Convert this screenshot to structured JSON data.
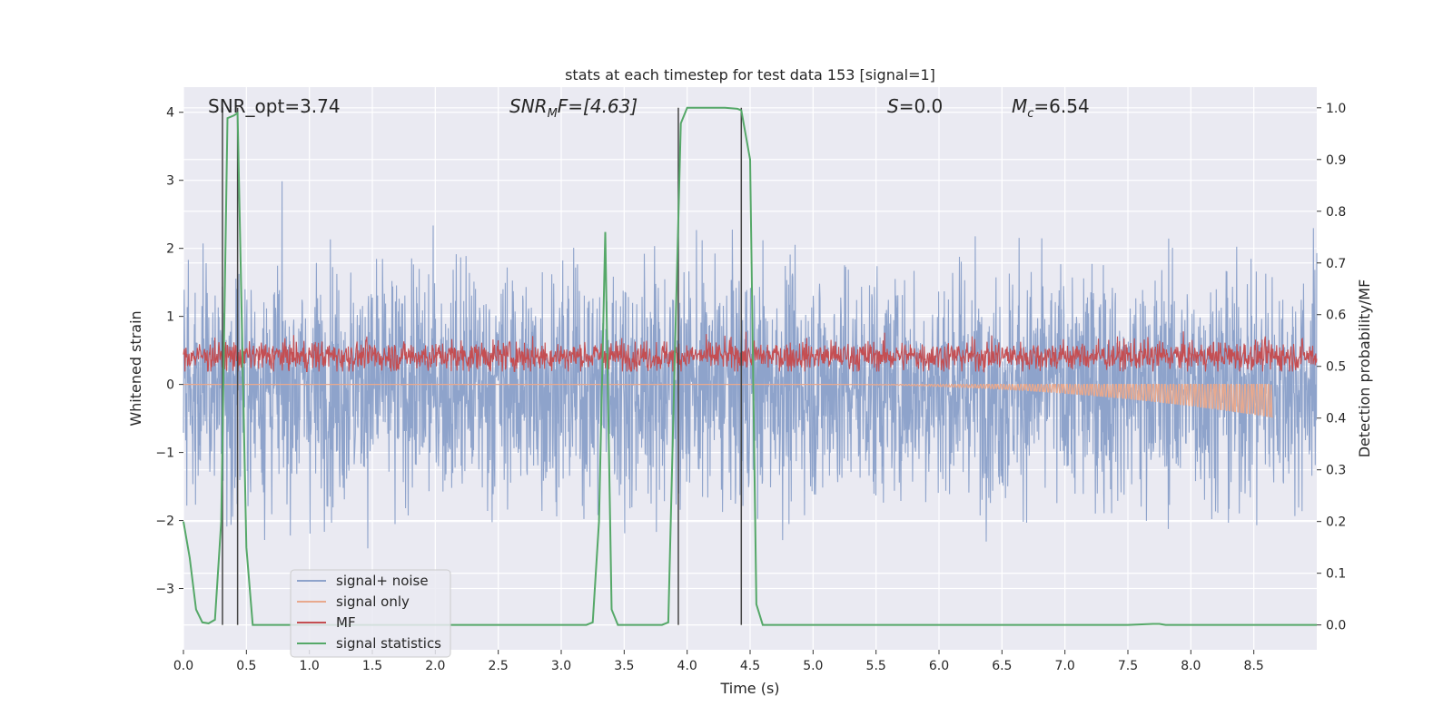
{
  "chart_data": {
    "type": "line",
    "title": "stats at each timestep for test data 153 [signal=1]",
    "xlabel": "Time (s)",
    "ylabel_left": "Whitened strain",
    "ylabel_right": "Detection probability/MF",
    "xlim": [
      0,
      9.0
    ],
    "ylim_left": [
      -3.9,
      4.37
    ],
    "ylim_right": [
      -0.048,
      1.04
    ],
    "x_ticks": [
      "0.0",
      "0.5",
      "1.0",
      "1.5",
      "2.0",
      "2.5",
      "3.0",
      "3.5",
      "4.0",
      "4.5",
      "5.0",
      "5.5",
      "6.0",
      "6.5",
      "7.0",
      "7.5",
      "8.0",
      "8.5"
    ],
    "y_ticks_left": [
      "4",
      "3",
      "2",
      "1",
      "0",
      "−1",
      "−2",
      "−3"
    ],
    "y_ticks_right": [
      "1.0",
      "0.9",
      "0.8",
      "0.7",
      "0.6",
      "0.5",
      "0.4",
      "0.3",
      "0.2",
      "0.1",
      "0.0"
    ],
    "grid": true,
    "legend_position": "lower-left",
    "annotations": {
      "snr_opt": "SNR_opt=3.74",
      "snr_mf_prefix": "SNR",
      "snr_mf_sub": "M",
      "snr_mf_suffix": "F=[4.63]",
      "s_label": "S",
      "s_value": "=0.0",
      "mc_label": "M",
      "mc_sub": "c",
      "mc_value": "=6.54"
    },
    "vertical_lines_x": [
      0.31,
      0.43,
      3.93,
      4.43
    ],
    "series": [
      {
        "name": "signal+ noise",
        "color": "#8ea3cb",
        "axis": "left",
        "description_envelope": {
          "center": 0.0,
          "typical_amplitude": 2.0,
          "max_abs": 4.0
        }
      },
      {
        "name": "signal only",
        "color": "#e8a98e",
        "axis": "left",
        "chirp": {
          "start": 5.0,
          "end": 8.65,
          "min_at_end": -0.48,
          "max_at_end": 0.0
        }
      },
      {
        "name": "MF",
        "color": "#c44e52",
        "axis": "right",
        "description_envelope": {
          "center": 0.52,
          "typical_amplitude": 0.03,
          "max": 0.6
        }
      },
      {
        "name": "signal statistics",
        "color": "#55a868",
        "axis": "right",
        "x": [
          0.0,
          0.05,
          0.1,
          0.15,
          0.2,
          0.25,
          0.3,
          0.35,
          0.4,
          0.43,
          0.45,
          0.5,
          0.55,
          0.6,
          1.0,
          2.0,
          3.0,
          3.2,
          3.25,
          3.3,
          3.35,
          3.4,
          3.45,
          3.5,
          3.6,
          3.8,
          3.85,
          3.9,
          3.95,
          4.0,
          4.1,
          4.3,
          4.4,
          4.43,
          4.5,
          4.55,
          4.6,
          5.0,
          6.0,
          7.0,
          7.5,
          7.7,
          7.75,
          7.8,
          8.0,
          9.0
        ],
        "y": [
          0.2,
          0.13,
          0.03,
          0.005,
          0.003,
          0.01,
          0.2,
          0.98,
          0.985,
          0.99,
          0.75,
          0.15,
          0.0,
          0.0,
          0.0,
          0.0,
          0.0,
          0.0,
          0.005,
          0.2,
          0.76,
          0.03,
          0.0,
          0.0,
          0.0,
          0.0,
          0.005,
          0.5,
          0.97,
          1.0,
          1.0,
          1.0,
          0.998,
          0.995,
          0.9,
          0.04,
          0.0,
          0.0,
          0.0,
          0.0,
          0.0,
          0.002,
          0.002,
          0.0,
          0.0,
          0.0
        ]
      }
    ]
  }
}
